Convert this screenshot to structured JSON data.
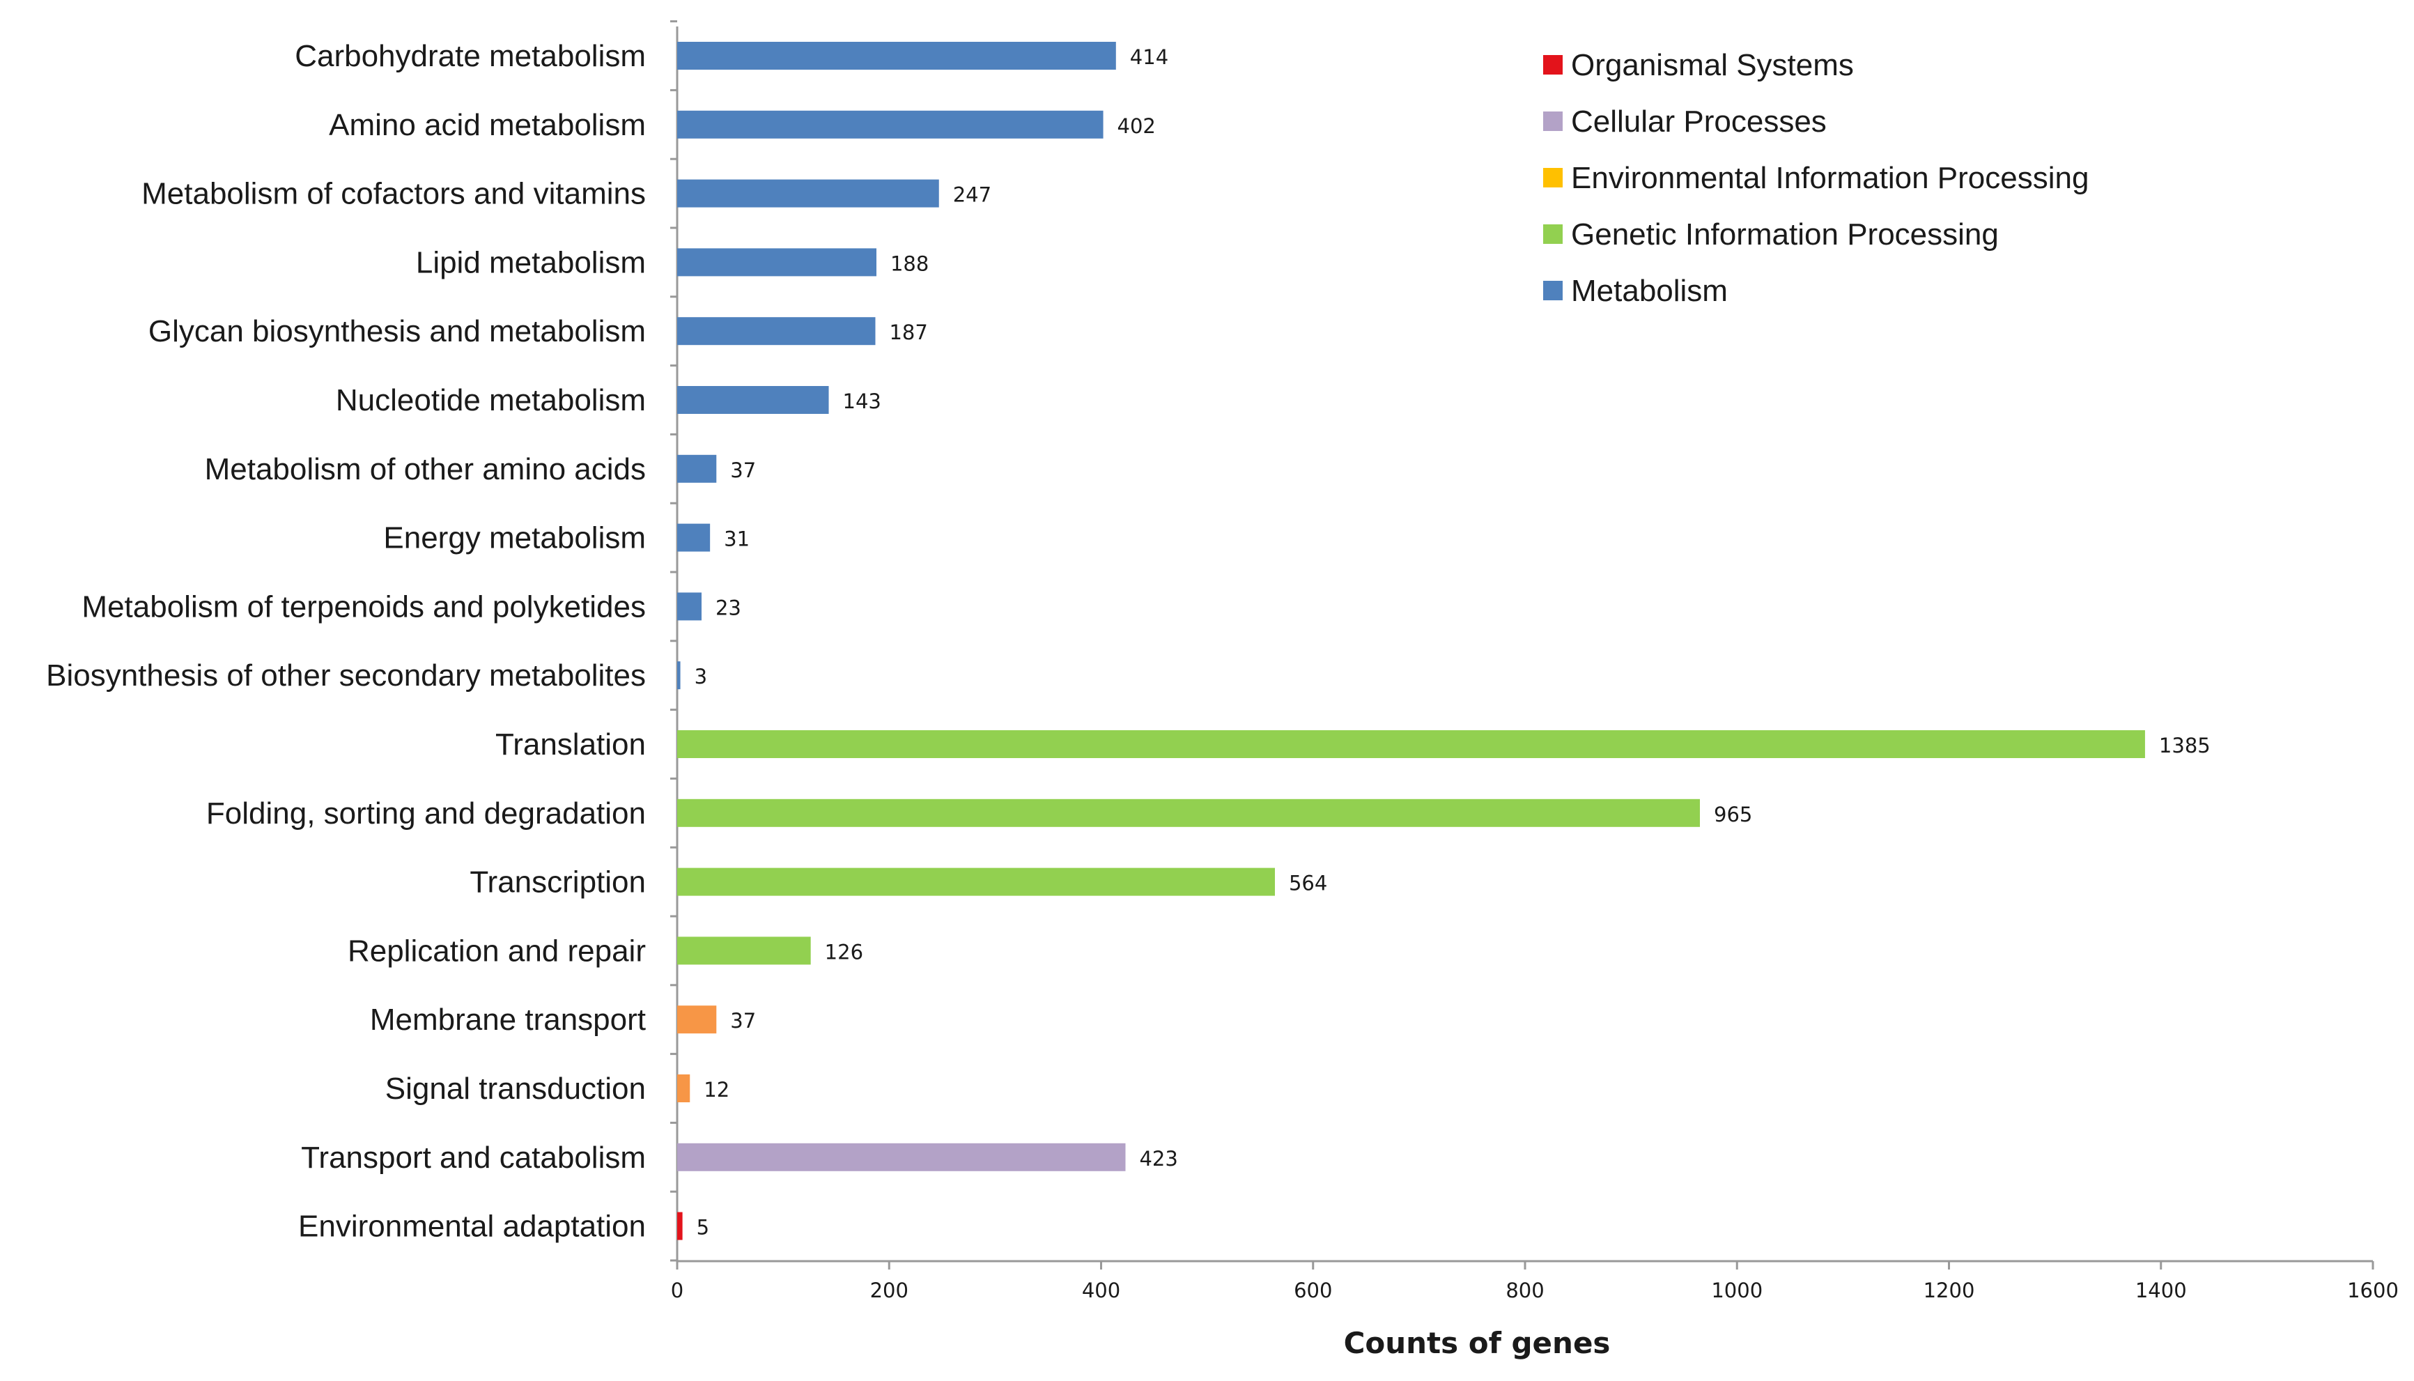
{
  "chart_data": {
    "type": "bar",
    "orientation": "horizontal",
    "title": "",
    "xlabel": "Counts of genes",
    "ylabel": "",
    "xlim": [
      0,
      1600
    ],
    "xticks": [
      0,
      200,
      400,
      600,
      800,
      1000,
      1200,
      1400,
      1600
    ],
    "grid": false,
    "legend_position": "top-right",
    "colors": {
      "Organismal Systems": "#e3131b",
      "Cellular Processes": "#b3a2c7",
      "Environmental Information Processing": "#f79646",
      "Environmental Information Processing (legend swatch)": "#ffc000",
      "Genetic Information Processing": "#92d050",
      "Metabolism": "#4f81bd"
    },
    "legend": [
      {
        "label": "Organismal Systems",
        "color": "#e3131b"
      },
      {
        "label": "Cellular Processes",
        "color": "#b3a2c7"
      },
      {
        "label": "Environmental Information Processing",
        "color": "#ffc000"
      },
      {
        "label": "Genetic Information Processing",
        "color": "#92d050"
      },
      {
        "label": "Metabolism",
        "color": "#4f81bd"
      }
    ],
    "bars": [
      {
        "category": "Carbohydrate metabolism",
        "value": 414,
        "group": "Metabolism"
      },
      {
        "category": "Amino acid metabolism",
        "value": 402,
        "group": "Metabolism"
      },
      {
        "category": "Metabolism of cofactors and vitamins",
        "value": 247,
        "group": "Metabolism"
      },
      {
        "category": "Lipid metabolism",
        "value": 188,
        "group": "Metabolism"
      },
      {
        "category": "Glycan biosynthesis and metabolism",
        "value": 187,
        "group": "Metabolism"
      },
      {
        "category": "Nucleotide metabolism",
        "value": 143,
        "group": "Metabolism"
      },
      {
        "category": "Metabolism of other amino acids",
        "value": 37,
        "group": "Metabolism"
      },
      {
        "category": "Energy metabolism",
        "value": 31,
        "group": "Metabolism"
      },
      {
        "category": "Metabolism of terpenoids and polyketides",
        "value": 23,
        "group": "Metabolism"
      },
      {
        "category": "Biosynthesis of other secondary metabolites",
        "value": 3,
        "group": "Metabolism"
      },
      {
        "category": "Translation",
        "value": 1385,
        "group": "Genetic Information Processing"
      },
      {
        "category": "Folding, sorting and degradation",
        "value": 965,
        "group": "Genetic Information Processing"
      },
      {
        "category": "Transcription",
        "value": 564,
        "group": "Genetic Information Processing"
      },
      {
        "category": "Replication and repair",
        "value": 126,
        "group": "Genetic Information Processing"
      },
      {
        "category": "Membrane transport",
        "value": 37,
        "group": "Environmental Information Processing"
      },
      {
        "category": "Signal transduction",
        "value": 12,
        "group": "Environmental Information Processing"
      },
      {
        "category": "Transport and catabolism",
        "value": 423,
        "group": "Cellular Processes"
      },
      {
        "category": "Environmental adaptation",
        "value": 5,
        "group": "Organismal Systems"
      }
    ]
  }
}
